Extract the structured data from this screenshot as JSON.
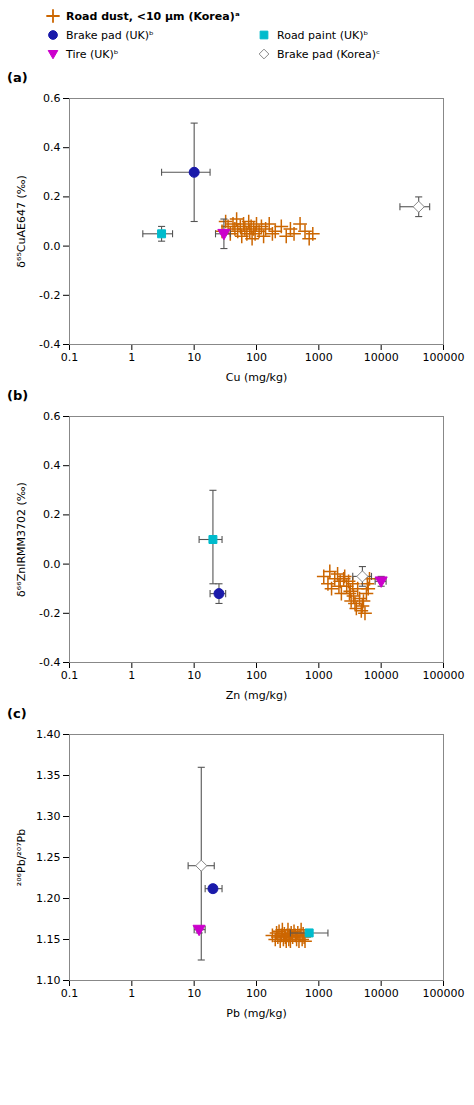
{
  "chart_data": [
    {
      "type": "scatter",
      "title": "(a)",
      "xlabel": "Cu (mg/kg)",
      "ylabel": "δ⁶⁵CuAE647 (‰)",
      "log": "x",
      "grid": false,
      "legend": "top",
      "xlim": [
        0.1,
        100000
      ],
      "xticks": [
        0.1,
        1,
        10,
        100,
        1000,
        10000,
        100000
      ],
      "ylim": [
        -0.4,
        0.6
      ],
      "yticks": [
        -0.4,
        -0.2,
        {
          "value": 0,
          "label": "0.0"
        },
        0.2,
        0.4,
        0.6
      ],
      "series": [
        {
          "name": "Road dust, <10 μm (Korea)ᵃ",
          "color": "#cc6600",
          "marker": "plus",
          "x": [
            28,
            32,
            35,
            38,
            42,
            45,
            48,
            50,
            55,
            58,
            62,
            65,
            70,
            75,
            78,
            82,
            85,
            90,
            95,
            100,
            110,
            120,
            130,
            140,
            160,
            180,
            200,
            250,
            300,
            350,
            400,
            500,
            600,
            700,
            800
          ],
          "y": [
            0.06,
            0.1,
            0.08,
            0.05,
            0.09,
            0.07,
            0.11,
            0.06,
            0.08,
            0.04,
            0.09,
            0.07,
            0.05,
            0.1,
            0.06,
            0.08,
            0.03,
            0.07,
            0.05,
            0.09,
            0.06,
            0.08,
            0.04,
            0.07,
            0.09,
            0.05,
            0.06,
            0.08,
            0.04,
            0.07,
            0.05,
            0.09,
            0.06,
            0.03,
            0.05
          ]
        },
        {
          "name": "Brake pad (UK)ᵇ",
          "color": "#1a1aaa",
          "marker": "circle",
          "x": [
            10
          ],
          "y": [
            0.3
          ],
          "xerr_minus": [
            7
          ],
          "xerr_plus": [
            8
          ],
          "yerr_minus": [
            0.2
          ],
          "yerr_plus": [
            0.2
          ]
        },
        {
          "name": "Road paint (UK)ᵇ",
          "color": "#00bbcc",
          "marker": "square",
          "x": [
            3.0
          ],
          "y": [
            0.05
          ],
          "xerr_minus": [
            1.5
          ],
          "xerr_plus": [
            1.5
          ],
          "yerr_minus": [
            0.03
          ],
          "yerr_plus": [
            0.03
          ]
        },
        {
          "name": "Tire (UK)ᵇ",
          "color": "#cc00cc",
          "marker": "triangle_down",
          "x": [
            30
          ],
          "y": [
            0.05
          ],
          "xerr_minus": [
            8
          ],
          "xerr_plus": [
            8
          ],
          "yerr_minus": [
            0.06
          ],
          "yerr_plus": [
            0.06
          ]
        },
        {
          "name": "Brake pad (Korea)ᶜ",
          "color": "#888888",
          "marker": "open_diamond",
          "x": [
            40000
          ],
          "y": [
            0.16
          ],
          "xerr_minus": [
            20000
          ],
          "xerr_plus": [
            20000
          ],
          "yerr_minus": [
            0.04
          ],
          "yerr_plus": [
            0.04
          ]
        }
      ]
    },
    {
      "type": "scatter",
      "title": "(b)",
      "xlabel": "Zn (mg/kg)",
      "ylabel": "δ⁶⁶ZnIRMM3702 (‰)",
      "log": "x",
      "grid": false,
      "xlim": [
        0.1,
        100000
      ],
      "xticks": [
        0.1,
        1,
        10,
        100,
        1000,
        10000,
        100000
      ],
      "ylim": [
        -0.4,
        0.6
      ],
      "yticks": [
        -0.4,
        -0.2,
        {
          "value": 0,
          "label": "0.0"
        },
        0.2,
        0.4,
        0.6
      ],
      "series": [
        {
          "name": "Road dust, <10 μm (Korea)ᵃ",
          "color": "#cc6600",
          "marker": "plus",
          "x": [
            1200,
            1400,
            1500,
            1600,
            1800,
            2000,
            2100,
            2200,
            2300,
            2500,
            2600,
            2800,
            3000,
            3100,
            3200,
            3300,
            3500,
            3600,
            3800,
            4000,
            4200,
            4500,
            4800,
            5000,
            5200,
            5500,
            5800,
            6000,
            6200,
            6500
          ],
          "y": [
            -0.05,
            -0.08,
            -0.03,
            -0.1,
            -0.06,
            -0.04,
            -0.09,
            -0.07,
            -0.12,
            -0.06,
            -0.05,
            -0.09,
            -0.07,
            -0.12,
            -0.11,
            -0.15,
            -0.08,
            -0.13,
            -0.16,
            -0.18,
            -0.1,
            -0.14,
            -0.19,
            -0.17,
            -0.15,
            -0.2,
            -0.12,
            -0.08,
            -0.1,
            -0.06
          ]
        },
        {
          "name": "Road paint (UK)ᵇ",
          "color": "#00bbcc",
          "marker": "square",
          "x": [
            20
          ],
          "y": [
            0.1
          ],
          "xerr_minus": [
            8
          ],
          "xerr_plus": [
            8
          ],
          "yerr_minus": [
            0.18
          ],
          "yerr_plus": [
            0.2
          ]
        },
        {
          "name": "Brake pad (UK)ᵇ",
          "color": "#1a1aaa",
          "marker": "circle",
          "x": [
            25
          ],
          "y": [
            -0.12
          ],
          "xerr_minus": [
            7
          ],
          "xerr_plus": [
            7
          ],
          "yerr_minus": [
            0.04
          ],
          "yerr_plus": [
            0.04
          ]
        },
        {
          "name": "Brake pad (Korea)ᶜ",
          "color": "#888888",
          "marker": "open_diamond",
          "x": [
            5000
          ],
          "y": [
            -0.05
          ],
          "xerr_minus": [
            1500
          ],
          "xerr_plus": [
            2000
          ],
          "yerr_minus": [
            0.04
          ],
          "yerr_plus": [
            0.04
          ]
        },
        {
          "name": "Tire (UK)ᵇ",
          "color": "#cc00cc",
          "marker": "triangle_down",
          "x": [
            10000
          ],
          "y": [
            -0.07
          ],
          "xerr_minus": [
            2000
          ],
          "xerr_plus": [
            2000
          ],
          "yerr_minus": [
            0.02
          ],
          "yerr_plus": [
            0.02
          ]
        }
      ]
    },
    {
      "type": "scatter",
      "title": "(c)",
      "xlabel": "Pb (mg/kg)",
      "ylabel": "²⁰⁶Pb/²⁰⁷Pb",
      "log": "x",
      "grid": false,
      "xlim": [
        0.1,
        100000
      ],
      "xticks": [
        0.1,
        1,
        10,
        100,
        1000,
        10000,
        100000
      ],
      "ylim": [
        1.1,
        1.4
      ],
      "yticks": [
        {
          "value": 1.1,
          "label": "1.10"
        },
        1.15,
        {
          "value": 1.2,
          "label": "1.20"
        },
        1.25,
        {
          "value": 1.3,
          "label": "1.30"
        },
        1.35,
        {
          "value": 1.4,
          "label": "1.40"
        }
      ],
      "series": [
        {
          "name": "Road dust, <10 μm (Korea)ᵃ",
          "color": "#cc6600",
          "marker": "plus",
          "x": [
            180,
            200,
            210,
            220,
            230,
            240,
            250,
            260,
            270,
            280,
            290,
            300,
            310,
            320,
            330,
            340,
            350,
            360,
            380,
            400,
            420,
            440,
            460,
            480,
            500,
            520,
            540,
            560,
            580,
            600
          ],
          "y": [
            1.155,
            1.15,
            1.158,
            1.153,
            1.16,
            1.148,
            1.155,
            1.162,
            1.15,
            1.157,
            1.153,
            1.148,
            1.155,
            1.162,
            1.15,
            1.155,
            1.148,
            1.158,
            1.153,
            1.16,
            1.155,
            1.15,
            1.158,
            1.148,
            1.155,
            1.162,
            1.15,
            1.157,
            1.153,
            1.148
          ]
        },
        {
          "name": "Brake pad (Korea)ᶜ",
          "color": "#888888",
          "marker": "open_diamond",
          "x": [
            13
          ],
          "y": [
            1.24
          ],
          "xerr_minus": [
            5
          ],
          "xerr_plus": [
            8
          ],
          "yerr_minus": [
            0.115
          ],
          "yerr_plus": [
            0.12
          ]
        },
        {
          "name": "Brake pad (UK)ᵇ",
          "color": "#1a1aaa",
          "marker": "circle",
          "x": [
            20
          ],
          "y": [
            1.212
          ],
          "xerr_minus": [
            5
          ],
          "xerr_plus": [
            8
          ],
          "yerr_minus": [
            0.004
          ],
          "yerr_plus": [
            0.004
          ]
        },
        {
          "name": "Tire (UK)ᵇ",
          "color": "#cc00cc",
          "marker": "triangle_down",
          "x": [
            12
          ],
          "y": [
            1.162
          ],
          "xerr_minus": [
            2
          ],
          "xerr_plus": [
            3
          ],
          "yerr_minus": [
            0.004
          ],
          "yerr_plus": [
            0.004
          ]
        },
        {
          "name": "Road paint (UK)ᵇ",
          "color": "#00bbcc",
          "marker": "square",
          "x": [
            700
          ],
          "y": [
            1.158
          ],
          "xerr_minus": [
            350
          ],
          "xerr_plus": [
            700
          ],
          "yerr_minus": [
            0.004
          ],
          "yerr_plus": [
            0.004
          ]
        }
      ]
    }
  ]
}
